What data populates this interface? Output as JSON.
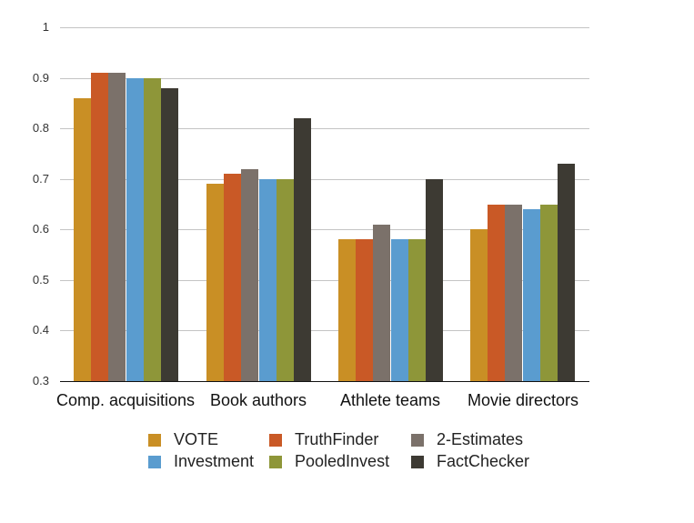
{
  "chart_data": {
    "type": "bar",
    "title": "",
    "xlabel": "",
    "ylabel": "",
    "ylim": [
      0.3,
      1.0
    ],
    "yticks": [
      "0.3",
      "0.4",
      "0.5",
      "0.6",
      "0.7",
      "0.8",
      "0.9",
      "1"
    ],
    "grid": true,
    "legend_position": "bottom",
    "categories": [
      "Comp. acquisitions",
      "Book authors",
      "Athlete teams",
      "Movie directors"
    ],
    "series": [
      {
        "name": "VOTE",
        "color": "#C98F25",
        "values": [
          0.86,
          0.69,
          0.58,
          0.6
        ]
      },
      {
        "name": "TruthFinder",
        "color": "#C95926",
        "values": [
          0.91,
          0.71,
          0.58,
          0.65
        ]
      },
      {
        "name": "2-Estimates",
        "color": "#7B716A",
        "values": [
          0.91,
          0.72,
          0.61,
          0.65
        ]
      },
      {
        "name": "Investment",
        "color": "#5A9CCF",
        "values": [
          0.9,
          0.7,
          0.58,
          0.64
        ]
      },
      {
        "name": "PooledInvest",
        "color": "#8E9639",
        "values": [
          0.9,
          0.7,
          0.58,
          0.65
        ]
      },
      {
        "name": "FactChecker",
        "color": "#3D3A33",
        "values": [
          0.88,
          0.82,
          0.7,
          0.73
        ]
      }
    ]
  }
}
